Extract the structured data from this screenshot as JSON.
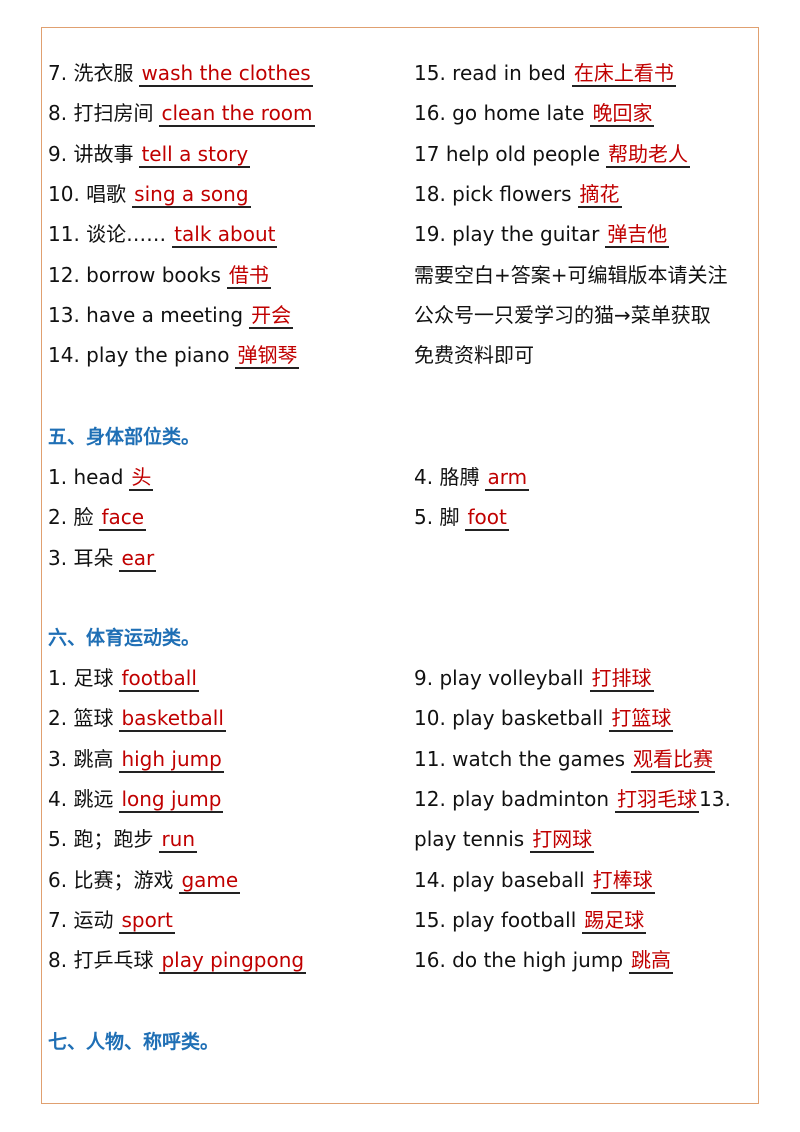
{
  "section4": {
    "left": [
      {
        "num": "7.",
        "term": "洗衣服",
        "answer": "wash the clothes"
      },
      {
        "num": "8.",
        "term": "打扫房间",
        "answer": "clean the room"
      },
      {
        "num": "9.",
        "term": "讲故事",
        "answer": "tell a story"
      },
      {
        "num": "10.",
        "term": "唱歌",
        "answer": "sing a song"
      },
      {
        "num": "11.",
        "term": "谈论……",
        "answer": "talk about"
      },
      {
        "num": "12.",
        "term": "borrow books",
        "answer": "借书"
      },
      {
        "num": "13.",
        "term": "have a meeting",
        "answer": "开会"
      },
      {
        "num": "14.",
        "term": "play the piano",
        "answer": "弹钢琴"
      }
    ],
    "right": [
      {
        "num": "15.",
        "term": "read in bed",
        "answer": "在床上看书"
      },
      {
        "num": "16.",
        "term": "go home late",
        "answer": "晚回家"
      },
      {
        "num": "17",
        "term": "help old people",
        "answer": "帮助老人"
      },
      {
        "num": "18.",
        "term": "pick flowers",
        "answer": "摘花"
      },
      {
        "num": "19.",
        "term": "play the guitar",
        "answer": "弹吉他"
      }
    ],
    "note": [
      "需要空白+答案+可编辑版本请关注",
      "公众号一只爱学习的猫→菜单获取",
      "免费资料即可"
    ]
  },
  "section5": {
    "heading": "五、身体部位类。",
    "left": [
      {
        "num": "1.",
        "term": "head",
        "answer": "头"
      },
      {
        "num": "2.",
        "term": "脸",
        "answer": "face"
      },
      {
        "num": "3.",
        "term": "耳朵",
        "answer": "ear"
      }
    ],
    "right": [
      {
        "num": "4.",
        "term": "胳膊",
        "answer": "arm"
      },
      {
        "num": "5.",
        "term": "脚",
        "answer": "foot"
      }
    ]
  },
  "section6": {
    "heading": "六、体育运动类。",
    "left": [
      {
        "num": "1.",
        "term": "足球",
        "answer": "football"
      },
      {
        "num": "2.",
        "term": "篮球",
        "answer": "basketball"
      },
      {
        "num": "3.",
        "term": "跳高",
        "answer": "high jump"
      },
      {
        "num": "4.",
        "term": "跳远",
        "answer": "long jump"
      },
      {
        "num": "5.",
        "term": "跑；跑步",
        "answer": "run"
      },
      {
        "num": "6.",
        "term": "比赛；游戏",
        "answer": "game"
      },
      {
        "num": "7.",
        "term": "运动",
        "answer": "sport"
      },
      {
        "num": "8.",
        "term": "打乒乓球",
        "answer": "play pingpong"
      }
    ],
    "right": [
      {
        "num": "9.",
        "term": "play volleyball",
        "answer": "打排球"
      },
      {
        "num": "10.",
        "term": "play basketball",
        "answer": "打篮球"
      },
      {
        "num": "11.",
        "term": "watch the games",
        "answer": "观看比赛"
      },
      {
        "num": "12.",
        "term": "play badminton",
        "answer": "打羽毛球",
        "tail": "13."
      },
      {
        "num": "",
        "term": "play tennis",
        "answer": "打网球"
      },
      {
        "num": "14.",
        "term": "play baseball",
        "answer": "打棒球"
      },
      {
        "num": "15.",
        "term": "play football",
        "answer": "踢足球"
      },
      {
        "num": "16.",
        "term": "do the high jump",
        "answer": "跳高"
      }
    ]
  },
  "section7": {
    "heading": "七、人物、称呼类。"
  }
}
